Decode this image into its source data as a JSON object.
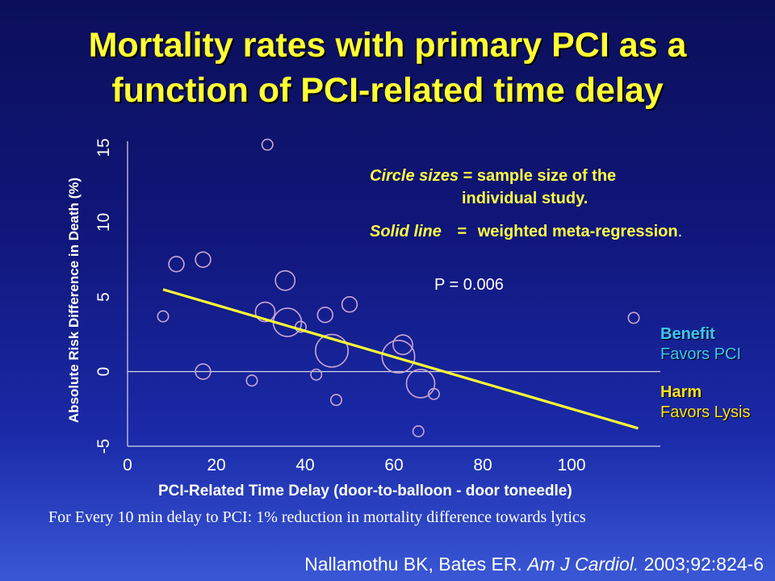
{
  "title_line1": "Mortality rates with primary PCI as a",
  "title_line2": "function of PCI-related time delay",
  "legend": {
    "circle_label": "Circle sizes",
    "circle_eq": "=",
    "circle_text1": "sample size of the",
    "circle_text2": "individual study.",
    "line_label": "Solid line",
    "line_eq": "=",
    "line_text": "weighted meta-regression",
    "line_tail": "."
  },
  "p_value": "P = 0.006",
  "benefit": {
    "head": "Benefit",
    "sub": "Favors PCI"
  },
  "harm": {
    "head": "Harm",
    "sub": "Favors Lysis"
  },
  "footnote": "For Every 10 min delay to PCI: 1% reduction in mortality difference towards lytics",
  "citation": {
    "authors": "Nallamothu BK, Bates ER. ",
    "journal": "Am J Cardiol.",
    "ref": " 2003;92:824-6"
  },
  "colors": {
    "title": "#ffff33",
    "regression": "#ffff33",
    "circles": "#c9a6d6",
    "benefit": "#3fc6f4",
    "harm": "#ffe21a"
  },
  "chart_data": {
    "type": "scatter",
    "xlabel": "PCI-Related Time Delay (door-to-balloon -  door toneedle)",
    "ylabel": "Absolute Risk Difference in Death (%)",
    "xlim": [
      0,
      120
    ],
    "ylim": [
      -5,
      15
    ],
    "xticks": [
      0,
      20,
      40,
      60,
      80,
      100
    ],
    "yticks": [
      -5,
      0,
      5,
      10,
      15
    ],
    "grid": false,
    "reference_line_y": 0,
    "regression_line": {
      "x": [
        8,
        115
      ],
      "y": [
        5.5,
        -3.8
      ]
    },
    "points": [
      {
        "x": 31.5,
        "y": 15.2,
        "size": 1
      },
      {
        "x": 11,
        "y": 7.2,
        "size": 2
      },
      {
        "x": 17,
        "y": 7.5,
        "size": 2
      },
      {
        "x": 35.5,
        "y": 6.1,
        "size": 3
      },
      {
        "x": 8,
        "y": 3.7,
        "size": 1
      },
      {
        "x": 31,
        "y": 4.0,
        "size": 3
      },
      {
        "x": 36,
        "y": 3.3,
        "size": 5
      },
      {
        "x": 39,
        "y": 3.0,
        "size": 1
      },
      {
        "x": 44.5,
        "y": 3.8,
        "size": 2
      },
      {
        "x": 50,
        "y": 4.5,
        "size": 2
      },
      {
        "x": 46,
        "y": 1.4,
        "size": 6
      },
      {
        "x": 62,
        "y": 1.8,
        "size": 3
      },
      {
        "x": 61,
        "y": 1.0,
        "size": 6
      },
      {
        "x": 17,
        "y": 0.0,
        "size": 2
      },
      {
        "x": 42.5,
        "y": -0.2,
        "size": 1
      },
      {
        "x": 28,
        "y": -0.6,
        "size": 1
      },
      {
        "x": 66,
        "y": -0.8,
        "size": 5
      },
      {
        "x": 69,
        "y": -1.5,
        "size": 1
      },
      {
        "x": 47,
        "y": -1.9,
        "size": 1
      },
      {
        "x": 65.5,
        "y": -4.0,
        "size": 1
      },
      {
        "x": 114,
        "y": 3.6,
        "size": 1
      }
    ]
  }
}
